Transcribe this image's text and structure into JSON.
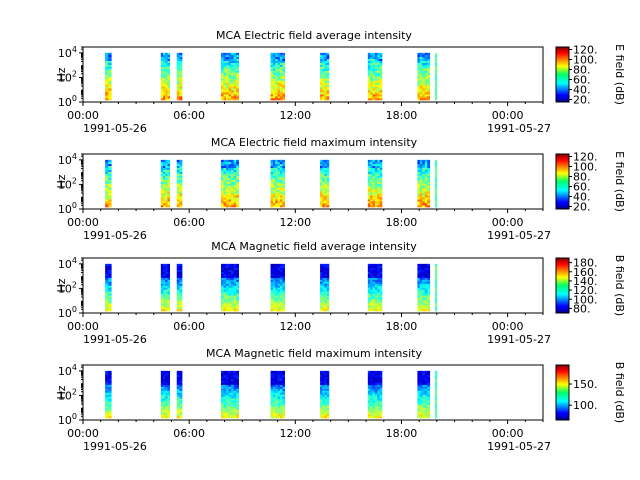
{
  "chart_data": [
    {
      "type": "heatmap",
      "title": "MCA  Electric field average intensity",
      "ylabel": "Hz",
      "colorbar_label": "E field (dB)",
      "y_scale": "log",
      "ylim": [
        1,
        30000
      ],
      "y_ticks": [
        {
          "base": "10",
          "exp": "0"
        },
        {
          "base": "10",
          "exp": "2"
        },
        {
          "base": "10",
          "exp": "4"
        }
      ],
      "x_ticks": [
        "00:00",
        "06:00",
        "12:00",
        "18:00",
        "00:00"
      ],
      "x_date_labels": [
        "1991-05-26",
        "1991-05-27"
      ],
      "xlim": [
        "1991-05-26T00:00",
        "1991-05-27T02:00"
      ],
      "colorbar_ticks": [
        "20.",
        "40.",
        "60.",
        "80.",
        "100.",
        "120."
      ],
      "colorbar_range": [
        15,
        125
      ],
      "data_segments": [
        [
          1.25,
          1.6
        ],
        [
          4.4,
          4.9
        ],
        [
          5.3,
          5.6
        ],
        [
          7.8,
          8.8
        ],
        [
          10.6,
          11.4
        ],
        [
          13.4,
          13.9
        ],
        [
          16.1,
          16.9
        ],
        [
          18.9,
          19.6
        ],
        [
          19.9,
          20.0
        ]
      ],
      "style": "electric"
    },
    {
      "type": "heatmap",
      "title": "MCA  Electric field maximum intensity",
      "ylabel": "Hz",
      "colorbar_label": "E field (dB)",
      "y_scale": "log",
      "ylim": [
        1,
        30000
      ],
      "y_ticks": [
        {
          "base": "10",
          "exp": "0"
        },
        {
          "base": "10",
          "exp": "2"
        },
        {
          "base": "10",
          "exp": "4"
        }
      ],
      "x_ticks": [
        "00:00",
        "06:00",
        "12:00",
        "18:00",
        "00:00"
      ],
      "x_date_labels": [
        "1991-05-26",
        "1991-05-27"
      ],
      "xlim": [
        "1991-05-26T00:00",
        "1991-05-27T02:00"
      ],
      "colorbar_ticks": [
        "20.",
        "40.",
        "60.",
        "80.",
        "100.",
        "120."
      ],
      "colorbar_range": [
        15,
        125
      ],
      "data_segments": [
        [
          1.25,
          1.6
        ],
        [
          4.4,
          4.9
        ],
        [
          5.3,
          5.6
        ],
        [
          7.8,
          8.8
        ],
        [
          10.6,
          11.4
        ],
        [
          13.4,
          13.9
        ],
        [
          16.1,
          16.9
        ],
        [
          18.9,
          19.6
        ],
        [
          19.9,
          20.0
        ]
      ],
      "style": "electric"
    },
    {
      "type": "heatmap",
      "title": "MCA  Magnetic field average intensity",
      "ylabel": "Hz",
      "colorbar_label": "B field (dB)",
      "y_scale": "log",
      "ylim": [
        1,
        30000
      ],
      "y_ticks": [
        {
          "base": "10",
          "exp": "0"
        },
        {
          "base": "10",
          "exp": "2"
        },
        {
          "base": "10",
          "exp": "4"
        }
      ],
      "x_ticks": [
        "00:00",
        "06:00",
        "12:00",
        "18:00",
        "00:00"
      ],
      "x_date_labels": [
        "1991-05-26",
        "1991-05-27"
      ],
      "xlim": [
        "1991-05-26T00:00",
        "1991-05-27T02:00"
      ],
      "colorbar_ticks": [
        "80.",
        "100.",
        "120.",
        "140.",
        "160.",
        "180."
      ],
      "colorbar_range": [
        70,
        190
      ],
      "data_segments": [
        [
          1.25,
          1.6
        ],
        [
          4.4,
          4.9
        ],
        [
          5.3,
          5.6
        ],
        [
          7.8,
          8.8
        ],
        [
          10.6,
          11.4
        ],
        [
          13.4,
          13.9
        ],
        [
          16.1,
          16.9
        ],
        [
          18.9,
          19.6
        ],
        [
          19.9,
          20.0
        ]
      ],
      "style": "magnetic"
    },
    {
      "type": "heatmap",
      "title": "MCA  Magnetic field maximum intensity",
      "ylabel": "Hz",
      "colorbar_label": "B field (dB)",
      "y_scale": "log",
      "ylim": [
        1,
        30000
      ],
      "y_ticks": [
        {
          "base": "10",
          "exp": "0"
        },
        {
          "base": "10",
          "exp": "2"
        },
        {
          "base": "10",
          "exp": "4"
        }
      ],
      "x_ticks": [
        "00:00",
        "06:00",
        "12:00",
        "18:00",
        "00:00"
      ],
      "x_date_labels": [
        "1991-05-26",
        "1991-05-27"
      ],
      "xlim": [
        "1991-05-26T00:00",
        "1991-05-27T02:00"
      ],
      "colorbar_ticks": [
        "100.",
        "150."
      ],
      "colorbar_range": [
        65,
        195
      ],
      "data_segments": [
        [
          1.25,
          1.6
        ],
        [
          4.4,
          4.9
        ],
        [
          5.3,
          5.6
        ],
        [
          7.8,
          8.8
        ],
        [
          10.6,
          11.4
        ],
        [
          13.4,
          13.9
        ],
        [
          16.1,
          16.9
        ],
        [
          18.9,
          19.6
        ],
        [
          19.9,
          20.0
        ]
      ],
      "style": "magnetic"
    }
  ]
}
